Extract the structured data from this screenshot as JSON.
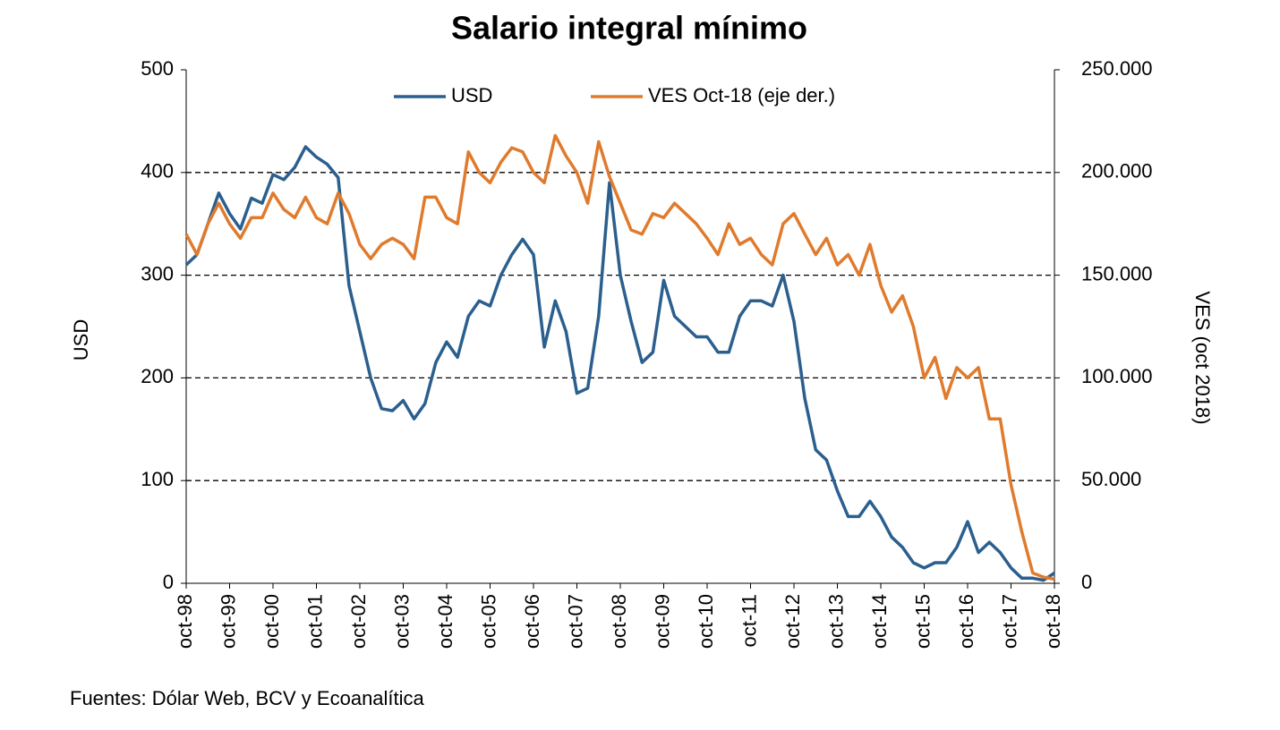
{
  "chart_data": {
    "type": "line",
    "title": "Salario integral mínimo",
    "ylabel": "USD",
    "y2label": "VES (oct 2018)",
    "source": "Fuentes: Dólar Web, BCV y  Ecoanalítica",
    "legend": "top",
    "grid": true,
    "categories": [
      "oct-98",
      null,
      null,
      null,
      "oct-99",
      null,
      null,
      null,
      "oct-00",
      null,
      null,
      null,
      "oct-01",
      null,
      null,
      null,
      "oct-02",
      null,
      null,
      null,
      "oct-03",
      null,
      null,
      null,
      "oct-04",
      null,
      null,
      null,
      "oct-05",
      null,
      null,
      null,
      "oct-06",
      null,
      null,
      null,
      "oct-07",
      null,
      null,
      null,
      "oct-08",
      null,
      null,
      null,
      "oct-09",
      null,
      null,
      null,
      "oct-10",
      null,
      null,
      null,
      "oct-11",
      null,
      null,
      null,
      "oct-12",
      null,
      null,
      null,
      "oct-13",
      null,
      null,
      null,
      "oct-14",
      null,
      null,
      null,
      "oct-15",
      null,
      null,
      null,
      "oct-16",
      null,
      null,
      null,
      "oct-17",
      null,
      null,
      null,
      "oct-18"
    ],
    "ylim": [
      0,
      500
    ],
    "yticks": [
      0,
      100,
      200,
      300,
      400,
      500
    ],
    "y2lim": [
      0,
      250000
    ],
    "y2ticks": [
      {
        "value": 0,
        "label": "0"
      },
      {
        "value": 50000,
        "label": "50.000"
      },
      {
        "value": 100000,
        "label": "100.000"
      },
      {
        "value": 150000,
        "label": "150.000"
      },
      {
        "value": 200000,
        "label": "200.000"
      },
      {
        "value": 250000,
        "label": "250.000"
      }
    ],
    "series": [
      {
        "name": "USD",
        "color": "#2b5f8e",
        "values": [
          310,
          320,
          350,
          380,
          360,
          345,
          375,
          370,
          398,
          393,
          405,
          425,
          415,
          408,
          395,
          290,
          245,
          200,
          170,
          168,
          178,
          160,
          175,
          215,
          235,
          220,
          260,
          275,
          270,
          300,
          320,
          335,
          320,
          230,
          275,
          245,
          185,
          190,
          260,
          390,
          300,
          255,
          215,
          225,
          295,
          260,
          250,
          240,
          240,
          225,
          225,
          260,
          275,
          275,
          270,
          300,
          255,
          180,
          130,
          120,
          90,
          65,
          65,
          80,
          65,
          45,
          35,
          20,
          15,
          20,
          20,
          35,
          60,
          30,
          40,
          30,
          15,
          5,
          5,
          3,
          10
        ]
      },
      {
        "name": "VES Oct-18 (eje der.)",
        "color": "#e07b2d",
        "axis": "y2",
        "values": [
          170000,
          160000,
          175000,
          185000,
          175000,
          168000,
          178000,
          178000,
          190000,
          182000,
          178000,
          188000,
          178000,
          175000,
          190000,
          180000,
          165000,
          158000,
          165000,
          168000,
          165000,
          158000,
          188000,
          188000,
          178000,
          175000,
          210000,
          200000,
          195000,
          205000,
          212000,
          210000,
          200000,
          195000,
          218000,
          208000,
          200000,
          185000,
          215000,
          198000,
          185000,
          172000,
          170000,
          180000,
          178000,
          185000,
          180000,
          175000,
          168000,
          160000,
          175000,
          165000,
          168000,
          160000,
          155000,
          175000,
          180000,
          170000,
          160000,
          168000,
          155000,
          160000,
          150000,
          165000,
          145000,
          132000,
          140000,
          125000,
          100000,
          110000,
          90000,
          105000,
          100000,
          105000,
          80000,
          80000,
          48000,
          25000,
          5000,
          3000,
          2000
        ]
      }
    ]
  }
}
